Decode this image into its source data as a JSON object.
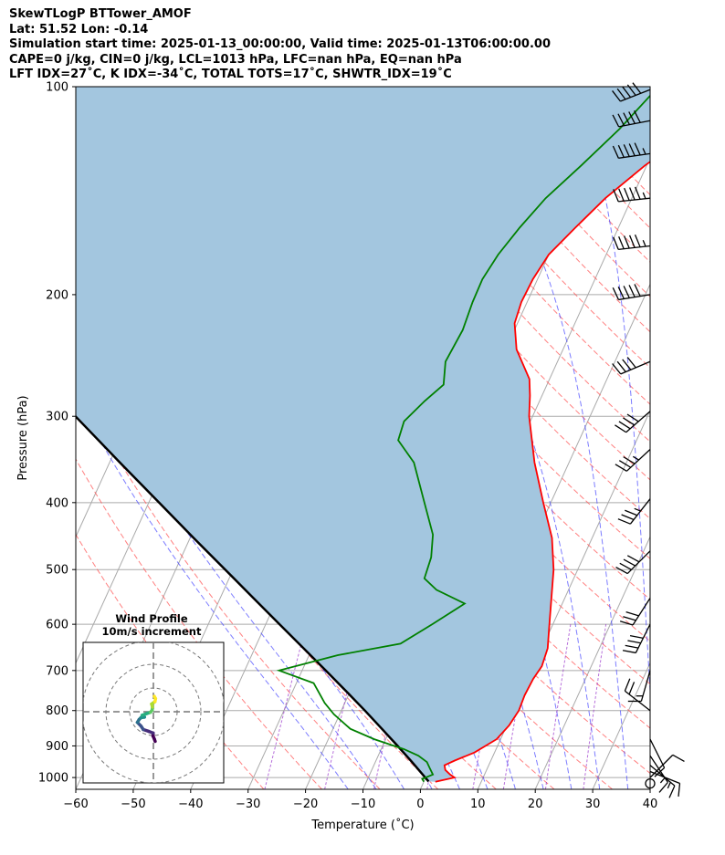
{
  "header": {
    "line1": "SkewTLogP BTTower_AMOF",
    "line2": "Lat: 51.52   Lon: -0.14",
    "line3": "Simulation start time: 2025-01-13_00:00:00, Valid time: 2025-01-13T06:00:00.00",
    "line4": "CAPE=0 j/kg, CIN=0 j/kg, LCL=1013 hPa, LFC=nan hPa, EQ=nan hPa",
    "line5": "LFT IDX=27˚C, K IDX=-34˚C, TOTAL TOTS=17˚C, SHWTR_IDX=19˚C"
  },
  "colors": {
    "temperature": "#ff0000",
    "dewpoint": "#008000",
    "parcel": "#000000",
    "fill": "#a3c6df",
    "dry_adiabat": "#ff5555",
    "moist_adiabat": "#4444ff",
    "mixing_ratio": "#9933cc",
    "isotherm": "#aaaaaa"
  },
  "chart_data": [
    {
      "type": "line",
      "kind": "skew-t log-p",
      "xlabel": "Temperature (˚C)",
      "ylabel": "Pressure (hPa)",
      "xlim": [
        -60,
        40
      ],
      "ylim": [
        1040,
        100
      ],
      "y_scale": "log",
      "grid": true,
      "x_ticks": [
        -60,
        -50,
        -40,
        -30,
        -20,
        -10,
        0,
        10,
        20,
        30,
        40
      ],
      "y_ticks": [
        100,
        200,
        300,
        400,
        500,
        600,
        700,
        800,
        900,
        1000
      ],
      "series": [
        {
          "key": "temperature",
          "points": [
            [
              1014,
              2.0
            ],
            [
              1000,
              5.0
            ],
            [
              990,
              4.0
            ],
            [
              975,
              2.8
            ],
            [
              960,
              2.3
            ],
            [
              945,
              3.7
            ],
            [
              920,
              6.5
            ],
            [
              880,
              9.3
            ],
            [
              840,
              10.4
            ],
            [
              800,
              10.9
            ],
            [
              760,
              10.7
            ],
            [
              720,
              10.9
            ],
            [
              690,
              11.4
            ],
            [
              650,
              11.0
            ],
            [
              600,
              9.4
            ],
            [
              500,
              5.8
            ],
            [
              450,
              3.0
            ],
            [
              400,
              -1.3
            ],
            [
              350,
              -6.0
            ],
            [
              300,
              -10.6
            ],
            [
              280,
              -12.1
            ],
            [
              265,
              -13.5
            ],
            [
              240,
              -18.1
            ],
            [
              220,
              -20.5
            ],
            [
              205,
              -21.0
            ],
            [
              190,
              -20.8
            ],
            [
              175,
              -20.0
            ],
            [
              160,
              -17.5
            ],
            [
              145,
              -14.6
            ],
            [
              130,
              -10.3
            ],
            [
              115,
              -4.2
            ],
            [
              100,
              2.6
            ]
          ]
        },
        {
          "key": "dewpoint",
          "points": [
            [
              1014,
              0.0
            ],
            [
              1005,
              -0.5
            ],
            [
              990,
              1.0
            ],
            [
              970,
              0.0
            ],
            [
              950,
              -1.0
            ],
            [
              930,
              -3.0
            ],
            [
              910,
              -6.0
            ],
            [
              880,
              -12.0
            ],
            [
              850,
              -17.0
            ],
            [
              810,
              -21.0
            ],
            [
              780,
              -23.5
            ],
            [
              730,
              -27.0
            ],
            [
              700,
              -34.0
            ],
            [
              665,
              -25.0
            ],
            [
              640,
              -15.0
            ],
            [
              600,
              -11.0
            ],
            [
              560,
              -7.0
            ],
            [
              535,
              -13.0
            ],
            [
              515,
              -16.0
            ],
            [
              480,
              -16.5
            ],
            [
              445,
              -18.0
            ],
            [
              400,
              -22.0
            ],
            [
              350,
              -27.0
            ],
            [
              325,
              -31.5
            ],
            [
              305,
              -32.0
            ],
            [
              285,
              -30.0
            ],
            [
              270,
              -28.0
            ],
            [
              250,
              -29.5
            ],
            [
              225,
              -29.0
            ],
            [
              205,
              -29.5
            ],
            [
              190,
              -29.6
            ],
            [
              175,
              -28.8
            ],
            [
              160,
              -27.2
            ],
            [
              145,
              -25.0
            ],
            [
              130,
              -21.4
            ],
            [
              115,
              -17.6
            ],
            [
              100,
              -14.2
            ]
          ]
        },
        {
          "key": "parcel",
          "points": [
            [
              1013,
              0.8
            ],
            [
              950,
              -3.6
            ],
            [
              900,
              -7.4
            ],
            [
              850,
              -11.5
            ],
            [
              800,
              -15.9
            ],
            [
              750,
              -20.7
            ],
            [
              700,
              -25.9
            ],
            [
              650,
              -31.5
            ],
            [
              600,
              -37.6
            ],
            [
              550,
              -44.2
            ],
            [
              500,
              -51.4
            ],
            [
              450,
              -59.4
            ],
            [
              400,
              -68.2
            ],
            [
              350,
              -78.2
            ],
            [
              300,
              -89.6
            ],
            [
              250,
              -103.0
            ],
            [
              200,
              -119.2
            ],
            [
              150,
              -140.0
            ],
            [
              100,
              -170.0
            ]
          ]
        }
      ]
    },
    {
      "type": "line",
      "kind": "hodograph",
      "title": "Wind Profile",
      "subtitle": "10m/s increment",
      "ring_spacing": 10,
      "rings": 3,
      "points": [
        [
          1.5,
          -25.0
        ],
        [
          0.8,
          -23.0
        ],
        [
          -0.3,
          -20.5
        ],
        [
          -0.2,
          -18.0
        ],
        [
          -4.0,
          -16.5
        ],
        [
          -8.5,
          -15.0
        ],
        [
          -10.5,
          -12.0
        ],
        [
          -13.5,
          -9.0
        ],
        [
          -12.0,
          -6.5
        ],
        [
          -10.5,
          -5.0
        ],
        [
          -7.5,
          -4.5
        ],
        [
          -9.5,
          -3.0
        ],
        [
          -5.5,
          -1.5
        ],
        [
          -2.5,
          -0.5
        ],
        [
          -1.0,
          1.5
        ],
        [
          -0.8,
          4.0
        ],
        [
          -1.5,
          6.5
        ],
        [
          1.3,
          8.5
        ],
        [
          1.8,
          11.0
        ],
        [
          0.8,
          13.0
        ]
      ]
    },
    {
      "type": "scatter",
      "kind": "wind barbs",
      "barbs": [
        {
          "p": 1020,
          "u": 0.0,
          "v": 0.0
        },
        {
          "p": 1000,
          "u": -3,
          "v": -3
        },
        {
          "p": 980,
          "u": -5,
          "v": 2
        },
        {
          "p": 960,
          "u": -6,
          "v": 5
        },
        {
          "p": 930,
          "u": -4,
          "v": 6
        },
        {
          "p": 880,
          "u": -2,
          "v": 4
        },
        {
          "p": 800,
          "u": 9,
          "v": -7
        },
        {
          "p": 700,
          "u": 2,
          "v": 7
        },
        {
          "p": 600,
          "u": 9,
          "v": 18
        },
        {
          "p": 550,
          "u": 9,
          "v": 14
        },
        {
          "p": 470,
          "u": 15,
          "v": 15
        },
        {
          "p": 395,
          "u": 11,
          "v": 14
        },
        {
          "p": 335,
          "u": 14,
          "v": 13
        },
        {
          "p": 295,
          "u": 16,
          "v": 14
        },
        {
          "p": 250,
          "u": 19,
          "v": 8
        },
        {
          "p": 200,
          "u": 25,
          "v": 4
        },
        {
          "p": 170,
          "u": 27,
          "v": 3
        },
        {
          "p": 145,
          "u": 28,
          "v": 3
        },
        {
          "p": 125,
          "u": 28,
          "v": 4
        },
        {
          "p": 112,
          "u": 26,
          "v": 5
        },
        {
          "p": 101,
          "u": 23,
          "v": 9
        }
      ]
    }
  ]
}
